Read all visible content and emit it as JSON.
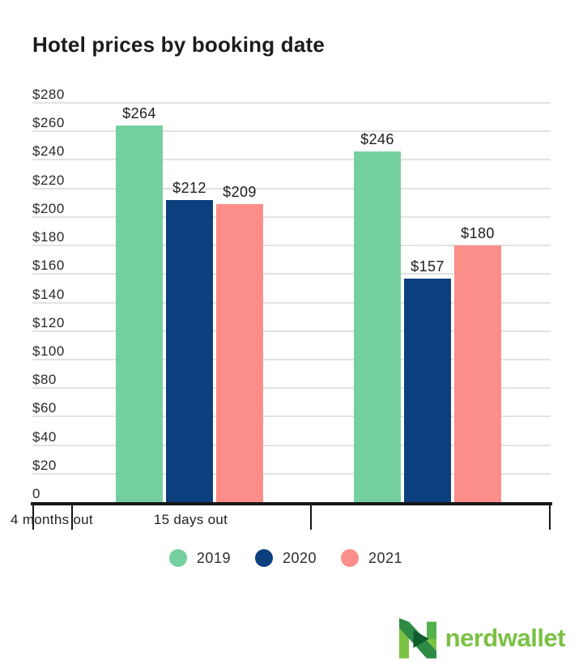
{
  "page": {
    "background": "#ffffff"
  },
  "chart_data": {
    "type": "bar",
    "title": "Hotel prices by booking date",
    "categories": [
      "4 months out",
      "15 days out"
    ],
    "series": [
      {
        "name": "2019",
        "color": "#75d0a0",
        "values": [
          264,
          246
        ],
        "labels": [
          "$264",
          "$246"
        ]
      },
      {
        "name": "2020",
        "color": "#0c3f7d",
        "values": [
          212,
          157
        ],
        "labels": [
          "$212",
          "$157"
        ]
      },
      {
        "name": "2021",
        "color": "#fb8e88",
        "values": [
          209,
          180
        ],
        "labels": [
          "$209",
          "$180"
        ]
      }
    ],
    "xlabel": "",
    "ylabel": "",
    "ylim": [
      0,
      280
    ],
    "y_tick_step": 20,
    "y_tick_labels": [
      "$280",
      "$260",
      "$240",
      "$220",
      "$200",
      "$180",
      "$160",
      "$140",
      "$120",
      "$100",
      "$80",
      "$60",
      "$40",
      "$20",
      "0"
    ],
    "grid": true,
    "legend_position": "bottom",
    "legend_entries": [
      "2019",
      "2020",
      "2021"
    ]
  },
  "branding": {
    "logo_text": "nerdwallet",
    "logo_color": "#7ac143",
    "logo_icon": "nerdwallet-n-icon"
  },
  "colors": {
    "gridline": "#e2e2e2",
    "axis": "#161616",
    "text": "#1d1d1d"
  }
}
